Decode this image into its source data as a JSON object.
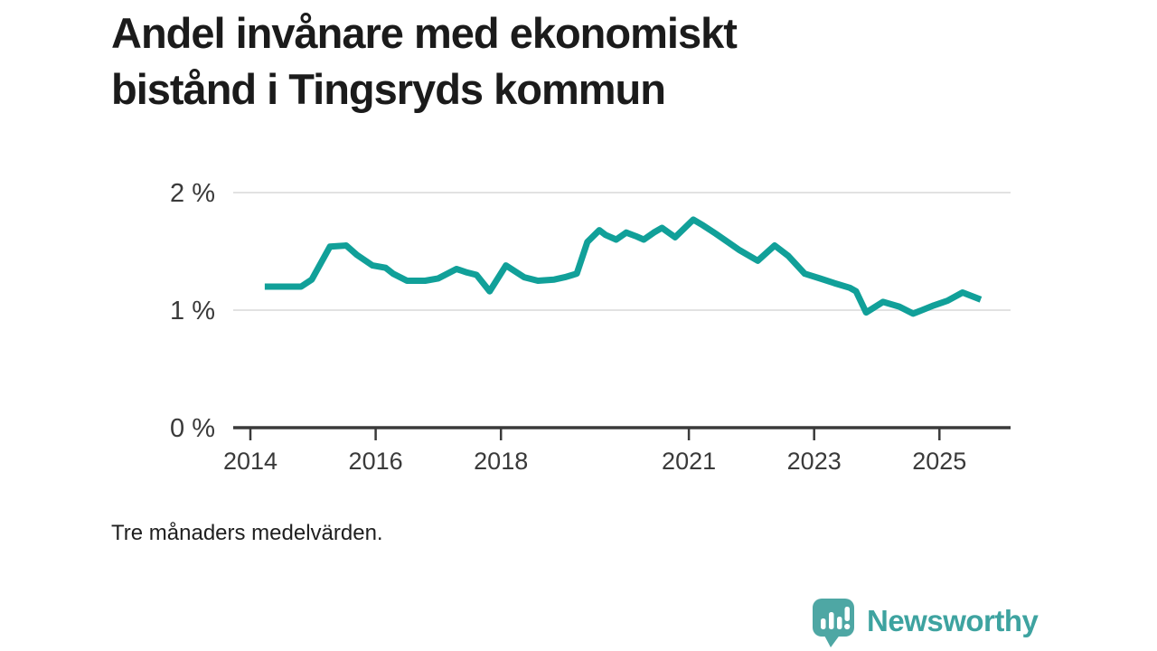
{
  "title_lines": [
    "Andel invånare med ekonomiskt",
    "bistånd i Tingsryds kommun"
  ],
  "footnote": "Tre månaders medelvärden.",
  "branding": {
    "name": "Newsworthy",
    "logo_icon": "speech-bubble-bar-chart-icon"
  },
  "colors": {
    "background": "#ffffff",
    "line": "#11a099",
    "grid": "#e2e2e2",
    "axis": "#3a3a3a",
    "tick_text": "#3a3a3a",
    "title_text": "#1b1b1b",
    "brand_teal": "#4ea7a4",
    "brand_text": "#3ea3a0"
  },
  "chart_data": {
    "type": "line",
    "title": "Andel invånare med ekonomiskt bistånd i Tingsryds kommun",
    "subtitle": "Tre månaders medelvärden.",
    "xlabel": "",
    "ylabel": "",
    "unit": "%",
    "grid": "horizontal",
    "legend_position": "none",
    "xlim": [
      2013.7,
      2026.2
    ],
    "ylim": [
      0,
      2.3
    ],
    "y_ticks": [
      {
        "value": 2,
        "label": "2 %"
      },
      {
        "value": 1,
        "label": "1 %"
      },
      {
        "value": 0,
        "label": "0 %"
      }
    ],
    "x_ticks": [
      {
        "value": 2014,
        "label": "2014"
      },
      {
        "value": 2016,
        "label": "2016"
      },
      {
        "value": 2018,
        "label": "2018"
      },
      {
        "value": 2021,
        "label": "2021"
      },
      {
        "value": 2023,
        "label": "2023"
      },
      {
        "value": 2025,
        "label": "2025"
      }
    ],
    "series": [
      {
        "name": "Andel invånare med ekonomiskt bistånd",
        "color": "#11a099",
        "points": [
          [
            2014.23,
            1.2
          ],
          [
            2014.81,
            1.2
          ],
          [
            2014.98,
            1.26
          ],
          [
            2015.27,
            1.54
          ],
          [
            2015.53,
            1.55
          ],
          [
            2015.7,
            1.47
          ],
          [
            2015.95,
            1.38
          ],
          [
            2016.16,
            1.36
          ],
          [
            2016.28,
            1.31
          ],
          [
            2016.5,
            1.25
          ],
          [
            2016.79,
            1.25
          ],
          [
            2017.0,
            1.27
          ],
          [
            2017.29,
            1.35
          ],
          [
            2017.46,
            1.32
          ],
          [
            2017.61,
            1.3
          ],
          [
            2017.82,
            1.16
          ],
          [
            2018.08,
            1.38
          ],
          [
            2018.37,
            1.28
          ],
          [
            2018.59,
            1.25
          ],
          [
            2018.85,
            1.26
          ],
          [
            2019.02,
            1.28
          ],
          [
            2019.21,
            1.31
          ],
          [
            2019.38,
            1.58
          ],
          [
            2019.57,
            1.68
          ],
          [
            2019.67,
            1.64
          ],
          [
            2019.84,
            1.6
          ],
          [
            2020.0,
            1.66
          ],
          [
            2020.15,
            1.63
          ],
          [
            2020.28,
            1.6
          ],
          [
            2020.44,
            1.66
          ],
          [
            2020.57,
            1.7
          ],
          [
            2020.78,
            1.62
          ],
          [
            2021.07,
            1.77
          ],
          [
            2021.23,
            1.72
          ],
          [
            2021.43,
            1.65
          ],
          [
            2021.62,
            1.58
          ],
          [
            2021.81,
            1.51
          ],
          [
            2022.1,
            1.42
          ],
          [
            2022.37,
            1.55
          ],
          [
            2022.59,
            1.46
          ],
          [
            2022.85,
            1.31
          ],
          [
            2023.09,
            1.27
          ],
          [
            2023.32,
            1.23
          ],
          [
            2023.57,
            1.19
          ],
          [
            2023.67,
            1.16
          ],
          [
            2023.83,
            0.98
          ],
          [
            2024.1,
            1.07
          ],
          [
            2024.36,
            1.03
          ],
          [
            2024.58,
            0.97
          ],
          [
            2024.91,
            1.04
          ],
          [
            2025.13,
            1.08
          ],
          [
            2025.37,
            1.15
          ],
          [
            2025.66,
            1.09
          ]
        ]
      }
    ]
  }
}
